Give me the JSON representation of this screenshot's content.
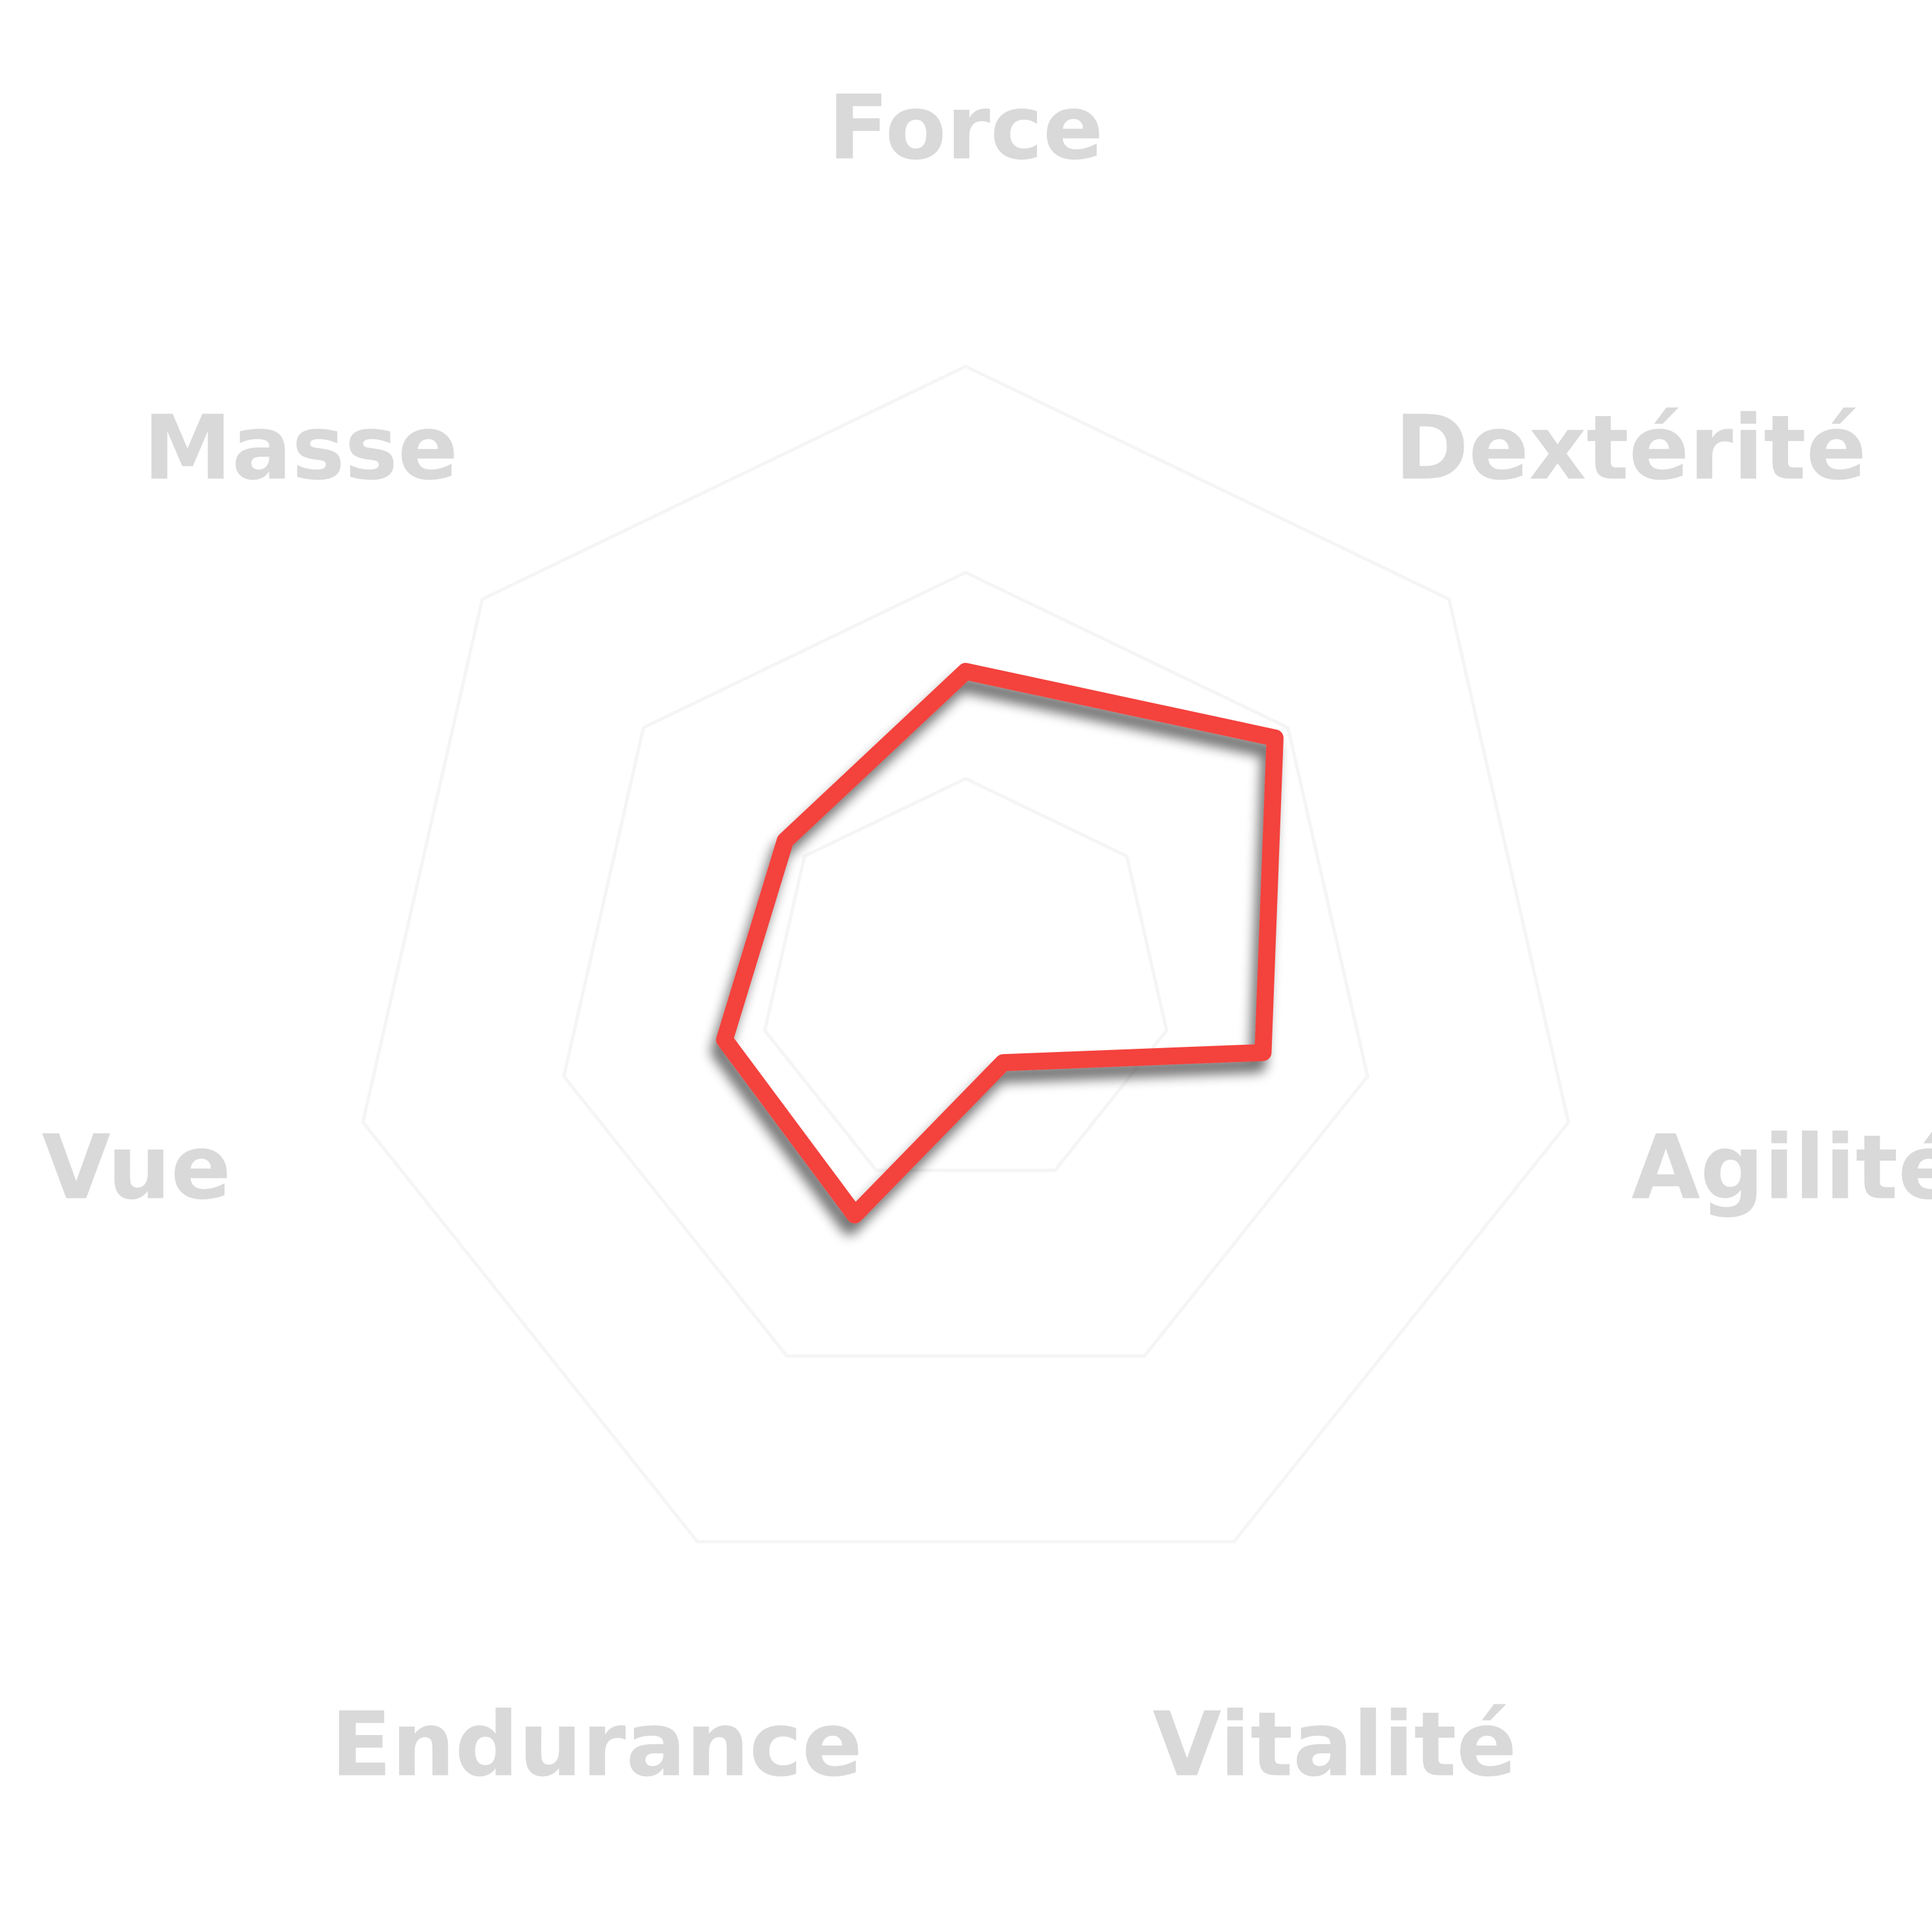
{
  "chart_data": {
    "type": "radar",
    "axes": [
      "Force",
      "Dextérité",
      "Agilité",
      "Vitalité",
      "Endurance",
      "Vue",
      "Masse"
    ],
    "series": [
      {
        "values": [
          7.6,
          9.6,
          7.4,
          2.1,
          6.2,
          6.0,
          5.6
        ],
        "color": "#f4433c"
      }
    ],
    "range": [
      0,
      15
    ],
    "grid_levels": 3,
    "grid": true,
    "legend": "none"
  },
  "colors": {
    "background": "#ffffff",
    "label": "#d9d9d9",
    "grid": "#f5f5f5",
    "series": "#f4433c",
    "shadow": "#000000"
  }
}
